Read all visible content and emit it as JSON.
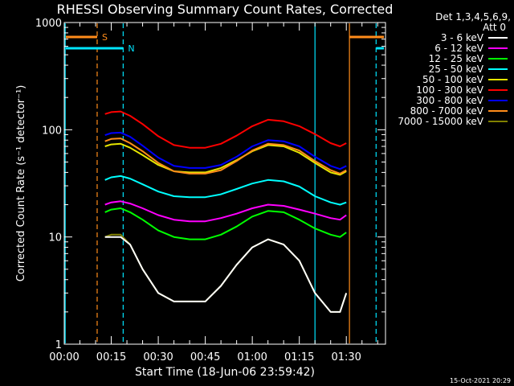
{
  "chart_data": {
    "type": "line",
    "title": "RHESSI Observing Summary Count Rates, Corrected",
    "xlabel": "Start Time (18-Jun-06 23:59:42)",
    "ylabel": "Corrected Count Rate (s⁻¹ detector⁻¹)",
    "y_scale": "log",
    "ylim": [
      1,
      1000
    ],
    "xlim_minutes": [
      0,
      102.5
    ],
    "x_ticks": [
      {
        "t": 0,
        "label": "00:00"
      },
      {
        "t": 15,
        "label": "00:15"
      },
      {
        "t": 30,
        "label": "00:30"
      },
      {
        "t": 45,
        "label": "00:45"
      },
      {
        "t": 60,
        "label": "01:00"
      },
      {
        "t": 75,
        "label": "01:15"
      },
      {
        "t": 90,
        "label": "01:30"
      }
    ],
    "y_ticks": [
      {
        "v": 1,
        "label": "1"
      },
      {
        "v": 10,
        "label": "10"
      },
      {
        "v": 100,
        "label": "100"
      },
      {
        "v": 1000,
        "label": "1000"
      }
    ],
    "legend_header": [
      "Det 1,3,4,5,6,9,",
      "Att 0"
    ],
    "legend_position": "right",
    "footer_date": "15-Oct-2021 20:29",
    "markers": [
      {
        "kind": "S",
        "label": "S",
        "color": "#ff8c1a",
        "t": [
          10.5,
          91.0
        ],
        "level": 0.955
      },
      {
        "kind": "N",
        "label": "N",
        "color": "#00e5ff",
        "t": [
          18.8,
          99.5
        ],
        "level": 0.92
      }
    ],
    "vertical_lines": [
      {
        "t": 0.3,
        "color": "#00e5ff",
        "style": "solid"
      },
      {
        "t": 10.5,
        "color": "#ff8c1a",
        "style": "dash"
      },
      {
        "t": 18.8,
        "color": "#00e5ff",
        "style": "dash"
      },
      {
        "t": 80.0,
        "color": "#00e5ff",
        "style": "solid"
      },
      {
        "t": 91.0,
        "color": "#ff8c1a",
        "style": "solid"
      },
      {
        "t": 99.5,
        "color": "#00e5ff",
        "style": "dash"
      }
    ],
    "x": [
      13,
      15,
      18,
      21,
      25,
      30,
      35,
      40,
      45,
      50,
      55,
      60,
      65,
      70,
      75,
      80,
      85,
      88,
      90
    ],
    "series": [
      {
        "name": "3 - 6 keV",
        "color": "#ffffff",
        "values": [
          10,
          10,
          10,
          8.5,
          5,
          3,
          2.5,
          2.5,
          2.5,
          3.5,
          5.5,
          8,
          9.5,
          8.5,
          6,
          3,
          2,
          2,
          3
        ]
      },
      {
        "name": "6 - 12 keV",
        "color": "#ff00ff",
        "values": [
          20,
          21,
          21.5,
          20.5,
          18.5,
          16,
          14.5,
          14,
          14,
          15,
          16.5,
          18.5,
          20,
          19.5,
          18,
          16.5,
          15,
          14.5,
          16
        ]
      },
      {
        "name": "12 - 25 keV",
        "color": "#00ff00",
        "values": [
          17,
          18,
          18.5,
          17,
          14.5,
          11.5,
          10,
          9.5,
          9.5,
          10.5,
          12.5,
          15.5,
          17.5,
          17,
          14.5,
          12,
          10.5,
          10,
          11
        ]
      },
      {
        "name": "25 - 50 keV",
        "color": "#00ffff",
        "values": [
          34,
          36,
          37,
          35,
          31,
          26.5,
          24,
          23.5,
          23.5,
          25,
          28,
          31.5,
          34,
          33,
          29.5,
          24,
          21,
          20,
          21
        ]
      },
      {
        "name": "50 - 100 keV",
        "color": "#e6e600",
        "values": [
          70,
          73,
          74,
          68,
          58,
          47,
          41,
          40,
          40,
          44,
          52,
          63,
          72,
          70,
          61,
          49,
          40,
          38,
          41
        ]
      },
      {
        "name": "100 - 300 keV",
        "color": "#ff0000",
        "values": [
          140,
          146,
          148,
          135,
          113,
          87,
          72,
          68,
          68,
          74,
          88,
          108,
          124,
          120,
          108,
          91,
          75,
          70,
          75
        ]
      },
      {
        "name": "300 - 800 keV",
        "color": "#0000ff",
        "values": [
          89,
          93,
          94,
          86,
          71,
          55,
          46,
          44,
          44,
          47,
          56,
          70,
          80,
          78,
          70,
          56,
          46,
          43,
          46
        ]
      },
      {
        "name": "800 - 7000 keV",
        "color": "#ff8c1a",
        "values": [
          78,
          82,
          83,
          75,
          63,
          49,
          41,
          39,
          39,
          42,
          51,
          64,
          74,
          72,
          64,
          51,
          42,
          39,
          42
        ]
      },
      {
        "name": "7000 - 15000 keV",
        "color": "#808000",
        "values": [
          10,
          10.5,
          10.5,
          8.5,
          5,
          3,
          2.5,
          2.5,
          2.5,
          3.5,
          5.5,
          8,
          9.5,
          8.5,
          6,
          3,
          2,
          2,
          3
        ]
      }
    ]
  }
}
